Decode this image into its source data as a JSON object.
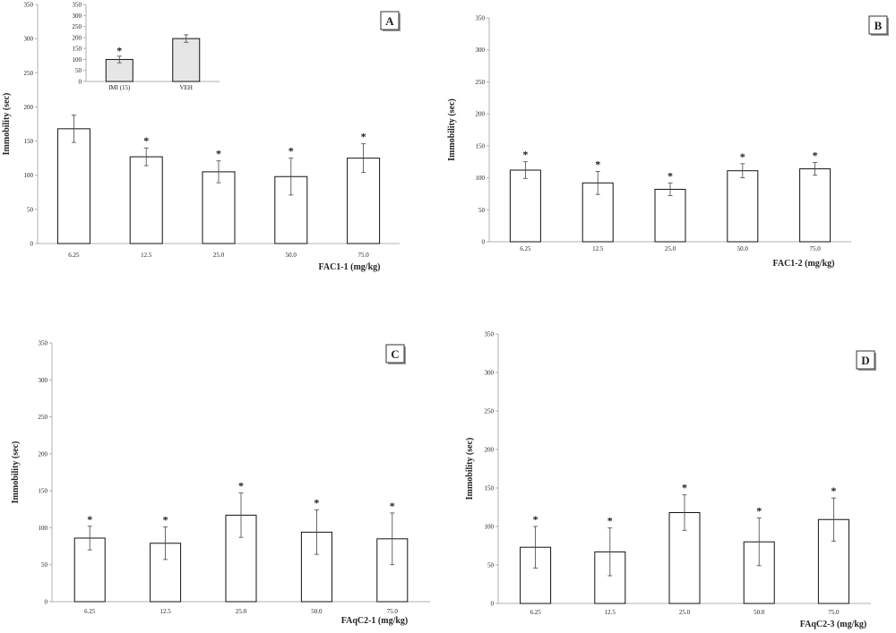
{
  "chart_data": [
    {
      "type": "bar",
      "panel_label": "A",
      "categories": [
        "6.25",
        "12.5",
        "25.0",
        "50.0",
        "75.0"
      ],
      "values": [
        168,
        127,
        105,
        98,
        125
      ],
      "errors": [
        20,
        13,
        16,
        27,
        21
      ],
      "significance": [
        "",
        "*",
        "*",
        "*",
        "*"
      ],
      "xlabel": "FAC1-1 (mg/kg)",
      "ylabel": "Immobility (sec)",
      "ylim": [
        0,
        350
      ],
      "yticks": [
        "0",
        "50",
        "100",
        "150",
        "200",
        "250",
        "300",
        "350"
      ],
      "inset": {
        "type": "bar",
        "categories": [
          "IMI (15)",
          "VEH"
        ],
        "values": [
          100,
          195
        ],
        "errors": [
          15,
          17
        ],
        "significance": [
          "*",
          ""
        ],
        "ylim": [
          0,
          350
        ],
        "yticks": [
          "0",
          "50",
          "100",
          "150",
          "200",
          "250",
          "300",
          "350"
        ],
        "bar_color": "#e6e6e6"
      }
    },
    {
      "type": "bar",
      "panel_label": "B",
      "categories": [
        "6.25",
        "12.5",
        "25.0",
        "50.0",
        "75.0"
      ],
      "values": [
        112,
        92,
        82,
        111,
        114
      ],
      "errors": [
        13,
        18,
        10,
        11,
        10
      ],
      "significance": [
        "*",
        "*",
        "*",
        "*",
        "*"
      ],
      "xlabel": "FAC1-2 (mg/kg)",
      "ylabel": "Immobility (sec)",
      "ylim": [
        0,
        350
      ],
      "yticks": [
        "0",
        "50",
        "100",
        "150",
        "200",
        "250",
        "300",
        "350"
      ]
    },
    {
      "type": "bar",
      "panel_label": "C",
      "categories": [
        "6.25",
        "12.5",
        "25.0",
        "50.0",
        "75.0"
      ],
      "values": [
        86,
        79,
        117,
        94,
        85
      ],
      "errors": [
        16,
        22,
        30,
        30,
        35
      ],
      "significance": [
        "*",
        "*",
        "*",
        "*",
        "*"
      ],
      "xlabel": "FAqC2-1 (mg/kg)",
      "ylabel": "Immobility (sec)",
      "ylim": [
        0,
        350
      ],
      "yticks": [
        "0",
        "50",
        "100",
        "150",
        "200",
        "250",
        "300",
        "350"
      ]
    },
    {
      "type": "bar",
      "panel_label": "D",
      "categories": [
        "6.25",
        "12.5",
        "25.0",
        "50.0",
        "75.0"
      ],
      "values": [
        73,
        67,
        118,
        80,
        109
      ],
      "errors": [
        27,
        31,
        23,
        31,
        28
      ],
      "significance": [
        "*",
        "*",
        "*",
        "*",
        "*"
      ],
      "xlabel": "FAqC2-3 (mg/kg)",
      "ylabel": "Immobility (sec)",
      "ylim": [
        0,
        350
      ],
      "yticks": [
        "0",
        "50",
        "100",
        "150",
        "200",
        "250",
        "300",
        "350"
      ]
    }
  ]
}
